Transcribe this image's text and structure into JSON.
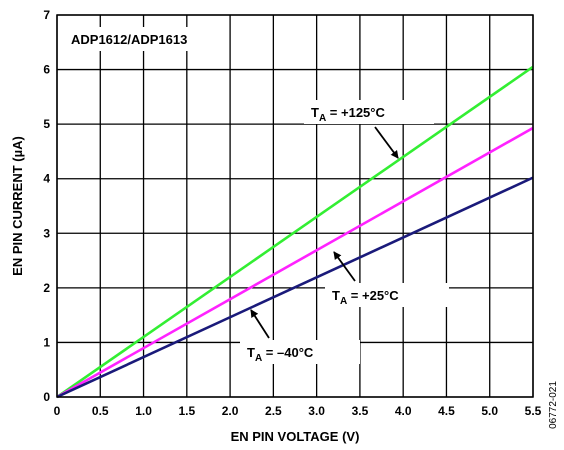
{
  "chart_data": {
    "type": "line",
    "title": "",
    "annotation_box": "ADP1612/ADP1613",
    "xlabel": "EN PIN VOLTAGE (V)",
    "ylabel": "EN PIN CURRENT (µA)",
    "xlim": [
      0,
      5.5
    ],
    "ylim": [
      0,
      7
    ],
    "x_ticks": [
      "0",
      "0.5",
      "1.0",
      "1.5",
      "2.0",
      "2.5",
      "3.0",
      "3.5",
      "4.0",
      "4.5",
      "5.0",
      "5.5"
    ],
    "y_ticks": [
      "0",
      "1",
      "2",
      "3",
      "4",
      "5",
      "6",
      "7"
    ],
    "grid": true,
    "figure_id": "06772-021",
    "series": [
      {
        "name": "T_A = +125°C",
        "label_sub": "A",
        "label_rest": " = +125°C",
        "color": "#33ee33",
        "x": [
          0,
          5.5
        ],
        "y": [
          0,
          6.05
        ]
      },
      {
        "name": "T_A = +25°C",
        "label_sub": "A",
        "label_rest": " = +25°C",
        "color": "#ff22ff",
        "x": [
          0,
          5.5
        ],
        "y": [
          0,
          4.93
        ]
      },
      {
        "name": "T_A = –40°C",
        "label_sub": "A",
        "label_rest": " = –40°C",
        "color": "#1a1a7a",
        "x": [
          0,
          5.5
        ],
        "y": [
          0,
          4.02
        ]
      }
    ],
    "annotations": [
      {
        "series": 0,
        "x": 3.65,
        "y": 4.5
      },
      {
        "series": 1,
        "x": 3.5,
        "y": 3.2
      },
      {
        "series": 2,
        "x": 2.65,
        "y": 2.1
      }
    ]
  }
}
